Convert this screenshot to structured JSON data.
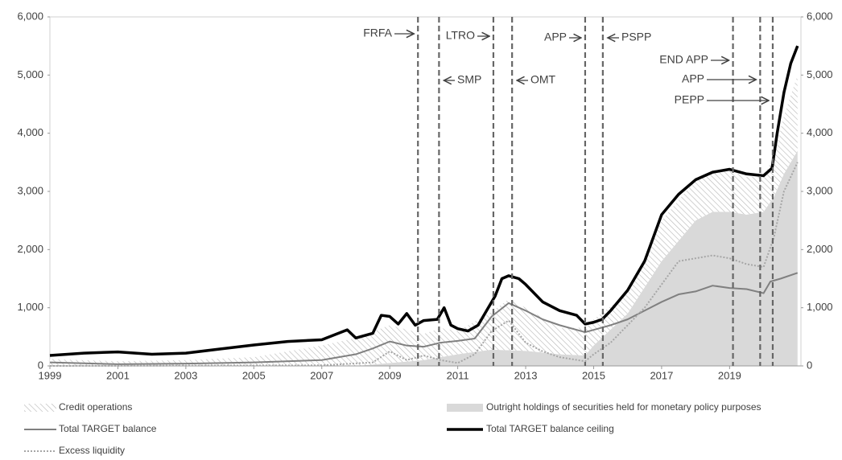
{
  "chart_data": {
    "type": "line",
    "xlim": [
      1999,
      2021.1
    ],
    "xticks": [
      1999,
      2001,
      2003,
      2005,
      2007,
      2009,
      2011,
      2013,
      2015,
      2017,
      2019
    ],
    "ylim": [
      0,
      6000
    ],
    "yticks": [
      0,
      {
        "value": 1000,
        "label": "1,000"
      },
      {
        "value": 2000,
        "label": "2,000"
      },
      {
        "value": 3000,
        "label": "3,000"
      },
      {
        "value": 4000,
        "label": "4,000"
      },
      {
        "value": 5000,
        "label": "5,000"
      },
      {
        "value": 6000,
        "label": "6,000"
      }
    ],
    "y2lim": [
      0,
      6000
    ],
    "y2ticks": [
      0,
      {
        "value": 1000,
        "label": "1,000"
      },
      {
        "value": 2000,
        "label": "2,000"
      },
      {
        "value": 3000,
        "label": "3,000"
      },
      {
        "value": 4000,
        "label": "4,000"
      },
      {
        "value": 5000,
        "label": "5,000"
      },
      {
        "value": 6000,
        "label": "6,000"
      }
    ],
    "series": [
      {
        "name": "Credit operations",
        "kind": "area",
        "fill": "hatch",
        "color": "#a6a6a6",
        "x": [
          1999,
          2001,
          2003,
          2005,
          2007,
          2008,
          2009,
          2010,
          2010.5,
          2011,
          2012,
          2012.5,
          2013,
          2014,
          2014.75,
          2015,
          2016,
          2017,
          2018,
          2018.5,
          2019,
          2019.5,
          2020,
          2020.3,
          2020.6,
          2021
        ],
        "values": [
          120,
          80,
          100,
          150,
          350,
          480,
          650,
          450,
          500,
          400,
          650,
          880,
          740,
          450,
          480,
          450,
          350,
          700,
          700,
          650,
          700,
          650,
          600,
          700,
          1000,
          1300
        ]
      },
      {
        "name": "Outright holdings of securities held for monetary policy purposes",
        "kind": "area",
        "fill": "solid",
        "color": "#d9d9d9",
        "x": [
          1999,
          2001,
          2003,
          2005,
          2007,
          2008,
          2009,
          2010,
          2010.5,
          2011,
          2012,
          2012.5,
          2013,
          2014,
          2014.75,
          2015,
          2016,
          2017,
          2018,
          2018.5,
          2019,
          2019.5,
          2020,
          2020.3,
          2020.6,
          2021
        ],
        "values": [
          0,
          0,
          0,
          0,
          0,
          0,
          50,
          100,
          150,
          200,
          280,
          270,
          260,
          200,
          180,
          350,
          900,
          1800,
          2500,
          2650,
          2650,
          2600,
          2650,
          2900,
          3300,
          3700
        ]
      },
      {
        "name": "Total TARGET balance",
        "kind": "line",
        "dash": "solid",
        "color": "#808080",
        "x": [
          1999,
          2001,
          2003,
          2005,
          2007,
          2008,
          2008.5,
          2009,
          2009.5,
          2010,
          2010.5,
          2011,
          2011.5,
          2012,
          2012.5,
          2013,
          2013.5,
          2014,
          2014.75,
          2015,
          2015.5,
          2016,
          2016.5,
          2017,
          2017.5,
          2018,
          2018.5,
          2019,
          2019.5,
          2020,
          2020.2,
          2020.5,
          2021
        ],
        "values": [
          60,
          30,
          40,
          60,
          100,
          200,
          300,
          420,
          350,
          330,
          400,
          430,
          470,
          850,
          1080,
          950,
          800,
          700,
          580,
          620,
          700,
          800,
          950,
          1100,
          1230,
          1280,
          1380,
          1340,
          1320,
          1250,
          1450,
          1500,
          1600
        ]
      },
      {
        "name": "Total TARGET balance ceiling",
        "kind": "line",
        "dash": "solid",
        "color": "#000000",
        "x": [
          1999,
          2000,
          2001,
          2002,
          2003,
          2004,
          2005,
          2006,
          2007,
          2007.75,
          2008,
          2008.5,
          2008.75,
          2009,
          2009.25,
          2009.5,
          2009.75,
          2010,
          2010.4,
          2010.6,
          2010.8,
          2011,
          2011.3,
          2011.6,
          2011.9,
          2012.1,
          2012.3,
          2012.5,
          2012.8,
          2013,
          2013.5,
          2014,
          2014.5,
          2014.75,
          2015,
          2015.25,
          2015.5,
          2016,
          2016.5,
          2017,
          2017.5,
          2018,
          2018.5,
          2019,
          2019.5,
          2020,
          2020.25,
          2020.4,
          2020.6,
          2020.8,
          2021
        ],
        "values": [
          180,
          220,
          240,
          200,
          220,
          290,
          360,
          420,
          450,
          620,
          480,
          560,
          870,
          850,
          720,
          900,
          700,
          780,
          800,
          1000,
          700,
          640,
          600,
          700,
          1000,
          1200,
          1500,
          1550,
          1500,
          1400,
          1100,
          950,
          870,
          720,
          750,
          800,
          950,
          1300,
          1800,
          2600,
          2950,
          3200,
          3330,
          3380,
          3300,
          3270,
          3400,
          4000,
          4700,
          5200,
          5500
        ]
      },
      {
        "name": "Excess liquidity",
        "kind": "line",
        "dash": "dotted",
        "color": "#a6a6a6",
        "x": [
          1999,
          2007,
          2008.5,
          2009,
          2009.5,
          2010,
          2010.5,
          2011,
          2011.5,
          2012,
          2012.5,
          2013,
          2013.5,
          2014,
          2014.75,
          2015,
          2015.5,
          2016,
          2016.5,
          2017,
          2017.5,
          2018,
          2018.5,
          2019,
          2019.5,
          2020,
          2020.3,
          2020.6,
          2021
        ],
        "values": [
          0,
          10,
          60,
          250,
          100,
          180,
          100,
          50,
          200,
          600,
          780,
          400,
          250,
          150,
          80,
          200,
          400,
          700,
          1000,
          1400,
          1800,
          1850,
          1900,
          1850,
          1750,
          1700,
          2200,
          3000,
          3500
        ]
      }
    ],
    "events": [
      {
        "label": "FRFA",
        "x": 2009.83,
        "side": "left"
      },
      {
        "label": "SMP",
        "x": 2010.45,
        "side": "right"
      },
      {
        "label": "LTRO",
        "x": 2012.05,
        "side": "left"
      },
      {
        "label": "OMT",
        "x": 2012.6,
        "side": "right"
      },
      {
        "label": "APP",
        "x": 2014.75,
        "side": "left"
      },
      {
        "label": "PSPP",
        "x": 2015.27,
        "side": "right"
      },
      {
        "label": "END APP",
        "x": 2019.1,
        "side": "left"
      },
      {
        "label": "APP",
        "x": 2019.9,
        "side": "left"
      },
      {
        "label": "PEPP",
        "x": 2020.27,
        "side": "left"
      }
    ]
  }
}
